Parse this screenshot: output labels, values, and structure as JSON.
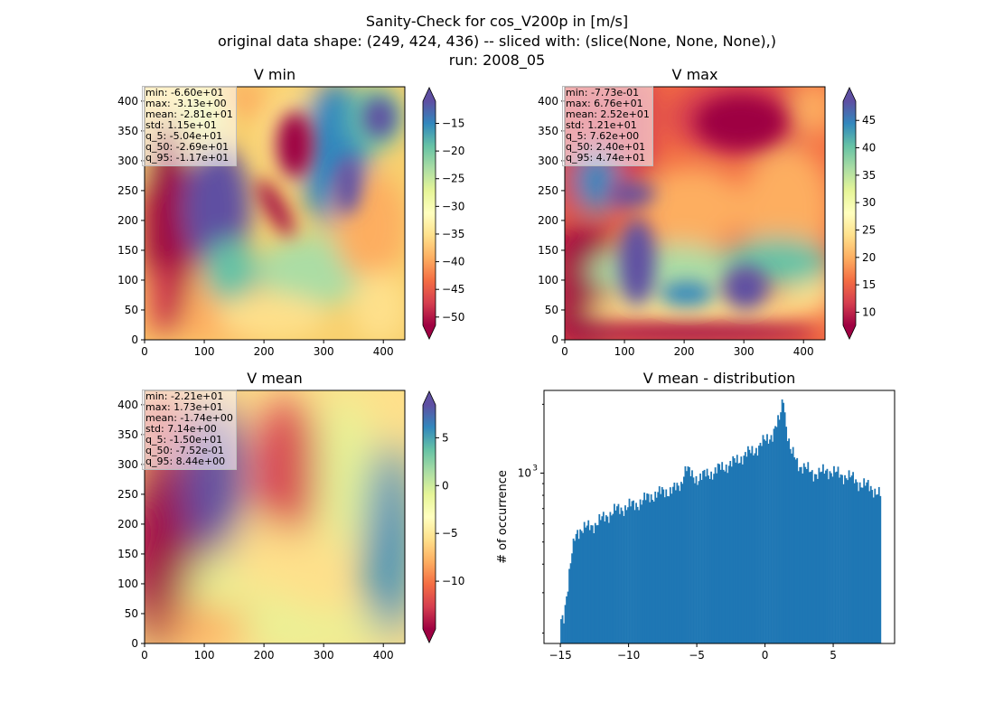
{
  "suptitle": [
    "Sanity-Check for cos_V200p in [m/s]",
    "original data shape: (249, 424, 436) -- sliced with: (slice(None, None, None),)",
    "run: 2008_05"
  ],
  "colors": {
    "spectral": [
      "#9e0142",
      "#d53e4f",
      "#f46d43",
      "#fdae61",
      "#fee08b",
      "#ffffbf",
      "#e6f598",
      "#abdda4",
      "#66c2a5",
      "#3288bd",
      "#5e4fa2"
    ],
    "hist_bar": "#1f77b4"
  },
  "chart_data": [
    {
      "type": "heatmap",
      "title": "V min",
      "xticks": [
        "0",
        "100",
        "200",
        "300",
        "400"
      ],
      "yticks": [
        "0",
        "50",
        "100",
        "150",
        "200",
        "250",
        "300",
        "350",
        "400"
      ],
      "xlim": [
        0,
        436
      ],
      "ylim": [
        0,
        424
      ],
      "colorbar": {
        "ticks": [
          "−15",
          "−20",
          "−25",
          "−30",
          "−35",
          "−40",
          "−45",
          "−50"
        ],
        "tick_values": [
          -15,
          -20,
          -25,
          -30,
          -35,
          -40,
          -45,
          -50
        ],
        "range": [
          -51.5,
          -11
        ],
        "extend": "both"
      },
      "stats": [
        "min: -6.60e+01",
        "max: -3.13e+00",
        "mean: -2.81e+01",
        "std: 1.15e+01",
        "q_5: -5.04e+01",
        "q_50: -2.69e+01",
        "q_95: -1.17e+01"
      ]
    },
    {
      "type": "heatmap",
      "title": "V max",
      "xticks": [
        "0",
        "100",
        "200",
        "300",
        "400"
      ],
      "yticks": [
        "0",
        "50",
        "100",
        "150",
        "200",
        "250",
        "300",
        "350",
        "400"
      ],
      "xlim": [
        0,
        436
      ],
      "ylim": [
        0,
        424
      ],
      "colorbar": {
        "ticks": [
          "45",
          "40",
          "35",
          "30",
          "25",
          "20",
          "15",
          "10"
        ],
        "tick_values": [
          45,
          40,
          35,
          30,
          25,
          20,
          15,
          10
        ],
        "range": [
          7.6,
          48.5
        ],
        "extend": "both"
      },
      "stats": [
        "min: -7.73e-01",
        "max: 6.76e+01",
        "mean: 2.52e+01",
        "std: 1.21e+01",
        "q_5: 7.62e+00",
        "q_50: 2.40e+01",
        "q_95: 4.74e+01"
      ]
    },
    {
      "type": "heatmap",
      "title": "V mean",
      "xticks": [
        "0",
        "100",
        "200",
        "300",
        "400"
      ],
      "yticks": [
        "0",
        "50",
        "100",
        "150",
        "200",
        "250",
        "300",
        "350",
        "400"
      ],
      "xlim": [
        0,
        436
      ],
      "ylim": [
        0,
        424
      ],
      "colorbar": {
        "ticks": [
          "5",
          "0",
          "−5",
          "−10"
        ],
        "tick_values": [
          5,
          0,
          -5,
          -10
        ],
        "range": [
          -15,
          8.44
        ],
        "extend": "both"
      },
      "stats": [
        "min: -2.21e+01",
        "max: 1.73e+01",
        "mean: -1.74e+00",
        "std: 7.14e+00",
        "q_5: -1.50e+01",
        "q_50: -7.52e-01",
        "q_95: 8.44e+00"
      ]
    },
    {
      "type": "bar",
      "title": "V mean - distribution",
      "ylabel": "# of occurrence",
      "yscale": "log",
      "xticks": [
        "−15",
        "−10",
        "−5",
        "0",
        "5"
      ],
      "xtick_values": [
        -15,
        -10,
        -5,
        0,
        5
      ],
      "ytick_label": "10",
      "ytick_exp": "3",
      "xlim": [
        -16.2,
        9.5
      ],
      "ylim": [
        180,
        2300
      ],
      "bin_width": 0.1,
      "x_start": -15.0,
      "x_end": 8.4,
      "anchors": [
        [
          -15.0,
          230
        ],
        [
          -14.8,
          240
        ],
        [
          -14.5,
          320
        ],
        [
          -14.0,
          520
        ],
        [
          -13.8,
          560
        ],
        [
          -13.5,
          570
        ],
        [
          -13.0,
          580
        ],
        [
          -12.5,
          600
        ],
        [
          -12.0,
          630
        ],
        [
          -11.5,
          660
        ],
        [
          -11.0,
          690
        ],
        [
          -10.5,
          700
        ],
        [
          -10.0,
          720
        ],
        [
          -9.5,
          730
        ],
        [
          -9.0,
          760
        ],
        [
          -8.5,
          790
        ],
        [
          -8.0,
          810
        ],
        [
          -7.5,
          830
        ],
        [
          -7.0,
          840
        ],
        [
          -6.5,
          860
        ],
        [
          -6.2,
          900
        ],
        [
          -6.0,
          1010
        ],
        [
          -5.8,
          1060
        ],
        [
          -5.6,
          1000
        ],
        [
          -5.3,
          960
        ],
        [
          -5.0,
          950
        ],
        [
          -4.5,
          980
        ],
        [
          -4.0,
          1000
        ],
        [
          -3.5,
          1040
        ],
        [
          -3.0,
          1070
        ],
        [
          -2.5,
          1100
        ],
        [
          -2.0,
          1150
        ],
        [
          -1.5,
          1200
        ],
        [
          -1.0,
          1250
        ],
        [
          -0.5,
          1300
        ],
        [
          0.0,
          1400
        ],
        [
          0.5,
          1480
        ],
        [
          1.0,
          1700
        ],
        [
          1.3,
          2180
        ],
        [
          1.5,
          1600
        ],
        [
          1.8,
          1250
        ],
        [
          2.0,
          1200
        ],
        [
          2.5,
          1080
        ],
        [
          3.0,
          1040
        ],
        [
          3.5,
          1000
        ],
        [
          4.0,
          1000
        ],
        [
          4.5,
          1030
        ],
        [
          5.0,
          1010
        ],
        [
          5.5,
          980
        ],
        [
          6.0,
          970
        ],
        [
          6.5,
          940
        ],
        [
          7.0,
          890
        ],
        [
          7.5,
          880
        ],
        [
          7.8,
          860
        ],
        [
          8.0,
          840
        ],
        [
          8.4,
          800
        ]
      ]
    }
  ]
}
